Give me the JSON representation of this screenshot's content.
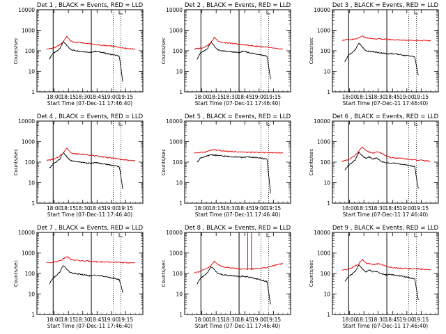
{
  "figure": {
    "layout": "3x3 grid",
    "colors": {
      "events": "#000000",
      "lld": "#e00000",
      "frame": "#000000"
    }
  },
  "chart_data": [
    {
      "type": "line",
      "title": "Det 1 , BLACK = Events, RED = LLD",
      "xlabel": "Start Time (07-Dec-11 17:46:40)",
      "ylabel": "Counts/sec",
      "yscale": "log",
      "ylim": [
        1,
        10000
      ],
      "ytick_labels": [
        "1",
        "10",
        "100",
        "1000",
        "10000"
      ],
      "xtick_labels": [
        "18:00",
        "18:15",
        "18:30",
        "18:45",
        "19:00",
        "19:15"
      ],
      "solid_vlines": [
        "17:59",
        "18:39"
      ],
      "dotted_vlines": [
        "19:02",
        "19:10"
      ],
      "series": [
        {
          "name": "Events",
          "color": "#000000",
          "y": [
            40,
            75,
            90,
            130,
            290,
            180,
            120,
            105,
            100,
            95,
            90,
            88,
            80,
            95,
            90,
            85,
            75,
            70,
            65,
            60,
            55,
            3
          ],
          "y_start": "17:55",
          "y_end": "19:12"
        },
        {
          "name": "LLD",
          "color": "#e00000",
          "y": [
            120,
            130,
            140,
            180,
            250,
            500,
            300,
            250,
            260,
            240,
            230,
            220,
            200,
            190,
            185,
            175,
            170,
            160,
            150,
            140,
            130,
            125,
            120
          ],
          "y_start": "17:52",
          "y_end": "19:25"
        }
      ]
    },
    {
      "type": "line",
      "title": "Det 2 , BLACK = Events, RED = LLD",
      "xlabel": "Start Time (07-Dec-11 17:46:40)",
      "ylabel": "Counts/sec",
      "yscale": "log",
      "ylim": [
        1,
        10000
      ],
      "ytick_labels": [
        "1",
        "10",
        "100",
        "1000",
        "10000"
      ],
      "xtick_labels": [
        "18:00",
        "18:15",
        "18:30",
        "18:45",
        "19:00",
        "19:15"
      ],
      "solid_vlines": [
        "17:59",
        "18:39"
      ],
      "dotted_vlines": [
        "19:02",
        "19:10"
      ],
      "series": [
        {
          "name": "Events",
          "color": "#000000",
          "y": [
            40,
            80,
            95,
            130,
            280,
            160,
            110,
            100,
            95,
            90,
            88,
            85,
            80,
            95,
            88,
            80,
            75,
            70,
            65,
            60,
            55,
            4
          ],
          "y_start": "17:55",
          "y_end": "19:12"
        },
        {
          "name": "LLD",
          "color": "#e00000",
          "y": [
            120,
            130,
            140,
            170,
            230,
            450,
            300,
            250,
            240,
            230,
            220,
            210,
            200,
            190,
            180,
            170,
            165,
            155,
            150,
            140,
            130,
            125,
            120
          ],
          "y_start": "17:52",
          "y_end": "19:25"
        }
      ]
    },
    {
      "type": "line",
      "title": "Det 3 , BLACK = Events, RED = LLD",
      "xlabel": "Start Time (07-Dec-11 17:46:40)",
      "ylabel": "Counts/sec",
      "yscale": "log",
      "ylim": [
        1,
        10000
      ],
      "ytick_labels": [
        "1",
        "10",
        "100",
        "1000",
        "10000"
      ],
      "xtick_labels": [
        "18:00",
        "18:15",
        "18:30",
        "18:45",
        "19:00",
        "19:15"
      ],
      "solid_vlines": [
        "17:59",
        "18:39"
      ],
      "dotted_vlines": [
        "19:02",
        "19:10"
      ],
      "series": [
        {
          "name": "Events",
          "color": "#000000",
          "y": [
            30,
            60,
            80,
            110,
            240,
            150,
            100,
            95,
            90,
            85,
            80,
            78,
            70,
            75,
            70,
            68,
            65,
            60,
            58,
            55,
            50,
            6
          ],
          "y_start": "17:55",
          "y_end": "19:12"
        },
        {
          "name": "LLD",
          "color": "#e00000",
          "y": [
            330,
            340,
            350,
            360,
            400,
            520,
            430,
            400,
            390,
            380,
            370,
            360,
            350,
            345,
            340,
            335,
            330,
            325,
            320,
            318,
            315,
            312,
            310
          ],
          "y_start": "17:52",
          "y_end": "19:25"
        }
      ]
    },
    {
      "type": "line",
      "title": "Det 4 , BLACK = Events, RED = LLD",
      "xlabel": "Start Time (07-Dec-11 17:46:40)",
      "ylabel": "Counts/sec",
      "yscale": "log",
      "ylim": [
        1,
        10000
      ],
      "ytick_labels": [
        "1",
        "10",
        "100",
        "1000",
        "10000"
      ],
      "xtick_labels": [
        "18:00",
        "18:15",
        "18:30",
        "18:45",
        "19:00",
        "19:15"
      ],
      "solid_vlines": [
        "17:59",
        "18:39"
      ],
      "dotted_vlines": [
        "19:02",
        "19:10"
      ],
      "series": [
        {
          "name": "Events",
          "color": "#000000",
          "y": [
            50,
            80,
            100,
            140,
            300,
            180,
            120,
            110,
            105,
            100,
            95,
            90,
            85,
            95,
            90,
            85,
            80,
            75,
            70,
            65,
            60,
            5
          ],
          "y_start": "17:55",
          "y_end": "19:12"
        },
        {
          "name": "LLD",
          "color": "#e00000",
          "y": [
            120,
            130,
            140,
            180,
            260,
            480,
            300,
            250,
            250,
            240,
            230,
            220,
            200,
            190,
            180,
            170,
            160,
            150,
            140,
            130,
            125,
            120,
            115
          ],
          "y_start": "17:52",
          "y_end": "19:25"
        }
      ]
    },
    {
      "type": "line",
      "title": "Det 5 , BLACK = Events, RED = LLD",
      "xlabel": "Start Time (07-Dec-11 17:46:40)",
      "ylabel": "Counts/sec",
      "yscale": "log",
      "ylim": [
        1,
        10000
      ],
      "ytick_labels": [
        "1",
        "10",
        "100",
        "1000",
        "10000"
      ],
      "xtick_labels": [
        "18:00",
        "18:15",
        "18:30",
        "18:45",
        "19:00",
        "19:15"
      ],
      "solid_vlines": [],
      "dotted_vlines": [
        "19:02",
        "19:10"
      ],
      "series": [
        {
          "name": "Events",
          "color": "#000000",
          "y": [
            100,
            160,
            180,
            200,
            230,
            220,
            210,
            200,
            195,
            190,
            185,
            180,
            175,
            170,
            180,
            175,
            170,
            165,
            160,
            150,
            140,
            3
          ],
          "y_start": "17:55",
          "y_end": "19:12"
        },
        {
          "name": "LLD",
          "color": "#e00000",
          "y": [
            280,
            290,
            300,
            320,
            380,
            400,
            370,
            350,
            340,
            330,
            320,
            315,
            310,
            305,
            300,
            300,
            298,
            295,
            292,
            290,
            288,
            285,
            280
          ],
          "y_start": "17:52",
          "y_end": "19:25"
        }
      ]
    },
    {
      "type": "line",
      "title": "Det 6 , BLACK = Events, RED = LLD",
      "xlabel": "Start Time (07-Dec-11 17:46:40)",
      "ylabel": "Counts/sec",
      "yscale": "log",
      "ylim": [
        1,
        10000
      ],
      "ytick_labels": [
        "1",
        "10",
        "100",
        "1000",
        "10000"
      ],
      "xtick_labels": [
        "18:00",
        "18:15",
        "18:30",
        "18:45",
        "19:00",
        "19:15"
      ],
      "solid_vlines": [
        "17:59",
        "18:39"
      ],
      "dotted_vlines": [
        "19:02",
        "19:10"
      ],
      "series": [
        {
          "name": "Events",
          "color": "#000000",
          "y": [
            40,
            70,
            90,
            130,
            300,
            200,
            150,
            180,
            140,
            160,
            120,
            100,
            90,
            95,
            90,
            85,
            80,
            75,
            70,
            65,
            60,
            5
          ],
          "y_start": "17:55",
          "y_end": "19:12"
        },
        {
          "name": "LLD",
          "color": "#e00000",
          "y": [
            110,
            120,
            140,
            200,
            300,
            550,
            350,
            300,
            280,
            320,
            260,
            200,
            170,
            160,
            155,
            150,
            140,
            135,
            130,
            125,
            120,
            115,
            110
          ],
          "y_start": "17:52",
          "y_end": "19:25"
        }
      ]
    },
    {
      "type": "line",
      "title": "Det 7 , BLACK = Events, RED = LLD",
      "xlabel": "Start Time (07-Dec-11 17:46:40)",
      "ylabel": "Counts/sec",
      "yscale": "log",
      "ylim": [
        1,
        10000
      ],
      "ytick_labels": [
        "1",
        "10",
        "100",
        "1000",
        "10000"
      ],
      "xtick_labels": [
        "18:00",
        "18:15",
        "18:30",
        "18:45",
        "19:00",
        "19:15"
      ],
      "solid_vlines": [
        "17:59",
        "18:39"
      ],
      "dotted_vlines": [
        "19:02",
        "19:10"
      ],
      "series": [
        {
          "name": "Events",
          "color": "#000000",
          "y": [
            30,
            60,
            80,
            120,
            250,
            160,
            110,
            100,
            95,
            90,
            85,
            80,
            75,
            85,
            80,
            75,
            70,
            65,
            60,
            55,
            50,
            12
          ],
          "y_start": "17:55",
          "y_end": "19:12"
        },
        {
          "name": "LLD",
          "color": "#e00000",
          "y": [
            330,
            340,
            360,
            400,
            480,
            700,
            500,
            450,
            420,
            410,
            400,
            390,
            380,
            370,
            365,
            360,
            355,
            350,
            345,
            340,
            335,
            330,
            325
          ],
          "y_start": "17:52",
          "y_end": "19:25"
        }
      ]
    },
    {
      "type": "line",
      "title": "Det 8 , BLACK = Events, RED = LLD",
      "xlabel": "Start Time (07-Dec-11 17:46:40)",
      "ylabel": "Counts/sec",
      "yscale": "log",
      "ylim": [
        1,
        10000
      ],
      "ytick_labels": [
        "1",
        "10",
        "100",
        "1000",
        "10000"
      ],
      "xtick_labels": [
        "18:00",
        "18:15",
        "18:30",
        "18:45",
        "19:00",
        "19:15"
      ],
      "solid_vlines": [
        "17:59",
        "18:39"
      ],
      "dotted_vlines": [
        "19:02",
        "19:10"
      ],
      "spike_times": [
        "18:48",
        "18:52"
      ],
      "series": [
        {
          "name": "Events",
          "color": "#000000",
          "y": [
            30,
            60,
            80,
            110,
            220,
            150,
            100,
            90,
            85,
            80,
            78,
            75,
            70,
            75,
            70,
            65,
            60,
            55,
            50,
            45,
            40,
            3
          ],
          "y_start": "17:55",
          "y_end": "19:12"
        },
        {
          "name": "LLD",
          "color": "#e00000",
          "y": [
            110,
            120,
            140,
            170,
            220,
            400,
            260,
            220,
            200,
            190,
            180,
            170,
            165,
            160,
            165,
            170,
            175,
            180,
            200,
            220,
            250,
            280,
            300
          ],
          "y_start": "17:52",
          "y_end": "19:25"
        }
      ]
    },
    {
      "type": "line",
      "title": "Det 9 , BLACK = Events, RED = LLD",
      "xlabel": "Start Time (07-Dec-11 17:46:40)",
      "ylabel": "Counts/sec",
      "yscale": "log",
      "ylim": [
        1,
        10000
      ],
      "ytick_labels": [
        "1",
        "10",
        "100",
        "1000",
        "10000"
      ],
      "xtick_labels": [
        "18:00",
        "18:15",
        "18:30",
        "18:45",
        "19:00",
        "19:15"
      ],
      "solid_vlines": [
        "17:59",
        "18:39"
      ],
      "dotted_vlines": [
        "19:02",
        "19:10"
      ],
      "series": [
        {
          "name": "Events",
          "color": "#000000",
          "y": [
            40,
            70,
            90,
            130,
            260,
            170,
            120,
            150,
            120,
            130,
            100,
            90,
            85,
            90,
            85,
            80,
            75,
            70,
            65,
            60,
            55,
            5
          ],
          "y_start": "17:55",
          "y_end": "19:12"
        },
        {
          "name": "LLD",
          "color": "#e00000",
          "y": [
            140,
            150,
            170,
            220,
            280,
            480,
            320,
            290,
            270,
            300,
            260,
            220,
            200,
            190,
            185,
            180,
            175,
            170,
            168,
            165,
            160,
            155,
            150
          ],
          "y_start": "17:52",
          "y_end": "19:25"
        }
      ]
    }
  ]
}
